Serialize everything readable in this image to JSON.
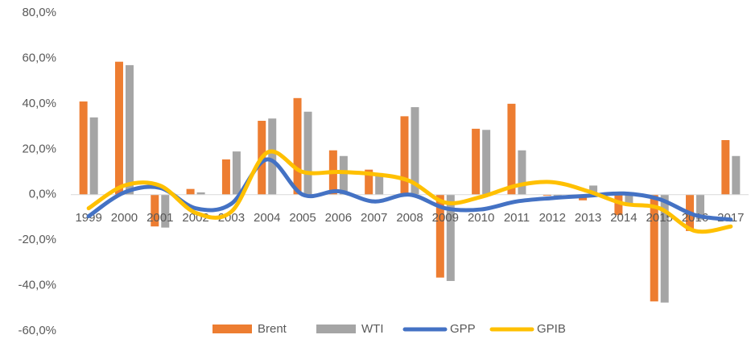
{
  "chart_data": {
    "type": "bar",
    "categories": [
      "1999",
      "2000",
      "2001",
      "2002",
      "2003",
      "2004",
      "2005",
      "2006",
      "2007",
      "2008",
      "2009",
      "2010",
      "2011",
      "2012",
      "2013",
      "2014",
      "2015",
      "2016",
      "2017"
    ],
    "series": [
      {
        "name": "Brent",
        "type": "bar",
        "color": "#ED7D31",
        "values": [
          41,
          58.5,
          -14,
          2.5,
          15.5,
          32.5,
          42.5,
          19.5,
          11,
          34.5,
          -36.5,
          29,
          40,
          -0.5,
          -2.5,
          -9,
          -47,
          -16,
          24
        ]
      },
      {
        "name": "WTI",
        "type": "bar",
        "color": "#A5A5A5",
        "values": [
          34,
          57,
          -14.5,
          1,
          19,
          33.5,
          36.5,
          17,
          9.5,
          38.5,
          -38,
          28.5,
          19.5,
          -1,
          4,
          -5,
          -47.5,
          -11,
          17
        ]
      },
      {
        "name": "GPP",
        "type": "line",
        "color": "#4472C4",
        "values": [
          -9.5,
          1,
          3,
          -6,
          -4,
          15.5,
          0,
          1.5,
          -3,
          0,
          -6,
          -6.5,
          -3,
          -1.5,
          -0.5,
          0.5,
          -2,
          -9,
          -11
        ]
      },
      {
        "name": "GPIB",
        "type": "line",
        "color": "#FFC000",
        "values": [
          -6,
          4,
          4,
          -8,
          -7.5,
          18.5,
          10,
          10,
          9,
          6,
          -3.5,
          -1,
          4,
          5.5,
          1.5,
          -4,
          -6,
          -16,
          -14
        ]
      }
    ],
    "ylim": [
      -60,
      80
    ],
    "yticks": [
      {
        "value": -60,
        "label": "-60,0%"
      },
      {
        "value": -40,
        "label": "-40,0%"
      },
      {
        "value": -20,
        "label": "-20,0%"
      },
      {
        "value": 0,
        "label": "0,0%"
      },
      {
        "value": 20,
        "label": "20,0%"
      },
      {
        "value": 40,
        "label": "40,0%"
      },
      {
        "value": 60,
        "label": "60,0%"
      },
      {
        "value": 80,
        "label": "80,0%"
      }
    ],
    "grid": false,
    "legend": "bottom"
  }
}
